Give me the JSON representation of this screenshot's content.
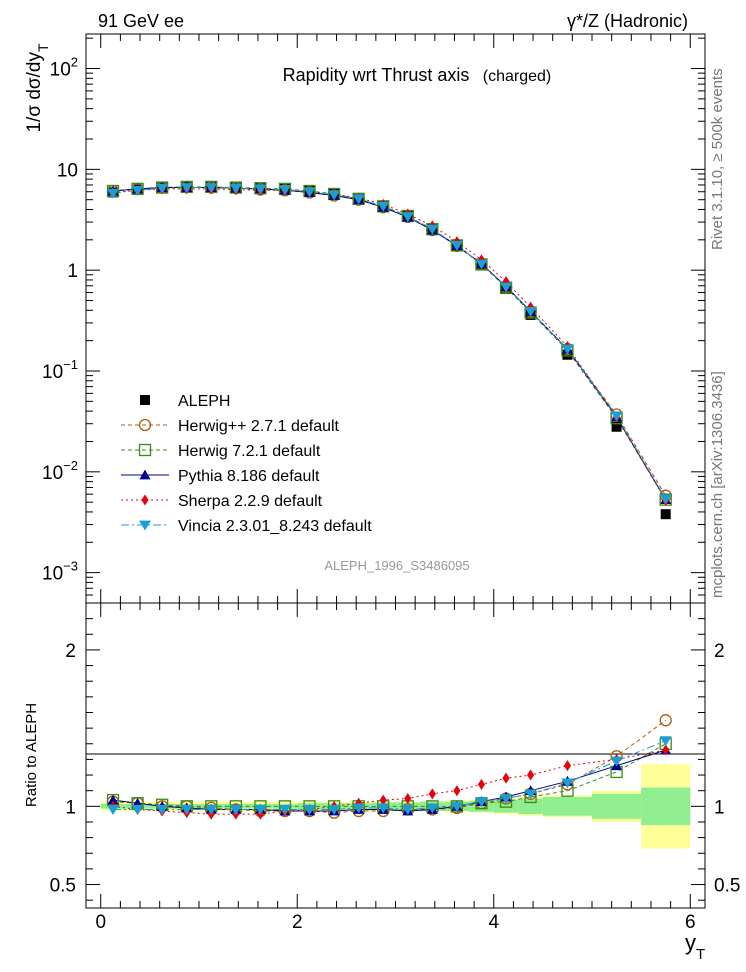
{
  "header": {
    "left": "91 GeV ee",
    "right": "γ*/Z (Hadronic)"
  },
  "side_labels": {
    "rivet": "Rivet 3.1.10, ≥ 500k events",
    "mcplots": "mcplots.cern.ch [arXiv:1306.3436]"
  },
  "chart_data": [
    {
      "type": "line",
      "title": "Rapidity wrt Thrust axis",
      "subtitle": "(charged)",
      "watermark": "ALEPH_1996_S3486095",
      "ylabel": "1/σ dσ/dy_T",
      "xlabel": "y_T",
      "yscale": "log",
      "xlim": [
        -0.15,
        6.15
      ],
      "ylim": [
        0.0005,
        220
      ],
      "ytick_labels": [
        {
          "value": 0.001,
          "base": "10",
          "exp": "−3"
        },
        {
          "value": 0.01,
          "base": "10",
          "exp": "−2"
        },
        {
          "value": 0.1,
          "base": "10",
          "exp": "−1"
        },
        {
          "value": 1,
          "base": "1",
          "exp": ""
        },
        {
          "value": 10,
          "base": "10",
          "exp": ""
        },
        {
          "value": 100,
          "base": "10",
          "exp": "2"
        }
      ],
      "x": [
        0.125,
        0.375,
        0.625,
        0.875,
        1.125,
        1.375,
        1.625,
        1.875,
        2.125,
        2.375,
        2.625,
        2.875,
        3.125,
        3.375,
        3.625,
        3.875,
        4.125,
        4.375,
        4.75,
        5.25,
        5.75
      ],
      "reference": {
        "name": "ALEPH",
        "color": "#000000",
        "values": [
          5.9,
          6.3,
          6.6,
          6.7,
          6.7,
          6.6,
          6.5,
          6.4,
          6.1,
          5.7,
          5.1,
          4.3,
          3.45,
          2.55,
          1.75,
          1.12,
          0.65,
          0.36,
          0.145,
          0.028,
          0.0038
        ]
      },
      "series": [
        {
          "name": "Herwig++ 2.7.1 default",
          "color": "#b25a0b",
          "dash": "4,3",
          "marker": "open-circle",
          "values": [
            6.1,
            6.4,
            6.6,
            6.7,
            6.6,
            6.5,
            6.3,
            6.2,
            5.9,
            5.5,
            5.0,
            4.2,
            3.38,
            2.5,
            1.74,
            1.14,
            0.68,
            0.39,
            0.165,
            0.037,
            0.0058
          ]
        },
        {
          "name": "Herwig 7.2.1 default",
          "color": "#3c8a16",
          "dash": "4,3",
          "marker": "open-square",
          "values": [
            6.1,
            6.4,
            6.6,
            6.7,
            6.7,
            6.6,
            6.5,
            6.4,
            6.1,
            5.7,
            5.1,
            4.3,
            3.45,
            2.55,
            1.76,
            1.14,
            0.67,
            0.38,
            0.16,
            0.034,
            0.0053
          ]
        },
        {
          "name": "Pythia 8.186 default",
          "color": "#00008b",
          "dash": "",
          "marker": "triangle-up",
          "values": [
            6.1,
            6.4,
            6.6,
            6.6,
            6.6,
            6.5,
            6.4,
            6.2,
            5.9,
            5.5,
            5.0,
            4.2,
            3.35,
            2.5,
            1.75,
            1.16,
            0.69,
            0.39,
            0.165,
            0.035,
            0.0053
          ]
        },
        {
          "name": "Sherpa 2.2.9 default",
          "color": "#e8000b",
          "dash": "2,3",
          "marker": "diamond",
          "values": [
            5.9,
            6.2,
            6.4,
            6.4,
            6.4,
            6.3,
            6.2,
            6.2,
            6.0,
            5.7,
            5.2,
            4.5,
            3.6,
            2.75,
            1.92,
            1.27,
            0.77,
            0.43,
            0.175,
            0.035,
            0.0052
          ]
        },
        {
          "name": "Vincia 2.3.01_8.243 default",
          "color": "#1a9ed8",
          "dash": "8,3,2,3",
          "marker": "triangle-down",
          "values": [
            5.8,
            6.2,
            6.5,
            6.6,
            6.6,
            6.5,
            6.4,
            6.3,
            6.0,
            5.6,
            5.1,
            4.3,
            3.4,
            2.55,
            1.76,
            1.15,
            0.68,
            0.39,
            0.165,
            0.036,
            0.0054
          ]
        }
      ]
    },
    {
      "type": "line",
      "title": "Ratio to ALEPH",
      "ylabel": "Ratio to ALEPH",
      "xlabel": "y_T",
      "ylim": [
        0.35,
        2.3
      ],
      "yticks": [
        0.5,
        1,
        2
      ],
      "ytick_labels": [
        "0.5",
        "1",
        "2"
      ],
      "xticks": [
        0,
        2,
        4,
        6
      ],
      "xtick_labels": [
        "0",
        "2",
        "4",
        "6"
      ],
      "bin_edges": [
        0,
        0.25,
        0.5,
        0.75,
        1.0,
        1.25,
        1.5,
        1.75,
        2.0,
        2.25,
        2.5,
        2.75,
        3.0,
        3.25,
        3.5,
        3.75,
        4.0,
        4.25,
        4.5,
        5.0,
        5.5,
        6.0
      ],
      "band_stat": [
        0.015,
        0.015,
        0.015,
        0.015,
        0.015,
        0.015,
        0.015,
        0.015,
        0.02,
        0.02,
        0.02,
        0.025,
        0.025,
        0.03,
        0.03,
        0.035,
        0.04,
        0.05,
        0.06,
        0.08,
        0.12
      ],
      "band_total": [
        0.03,
        0.03,
        0.03,
        0.03,
        0.03,
        0.03,
        0.03,
        0.03,
        0.03,
        0.03,
        0.03,
        0.03,
        0.03,
        0.03,
        0.04,
        0.04,
        0.05,
        0.06,
        0.07,
        0.1,
        0.27
      ],
      "band_colors": {
        "stat": "#90ee90",
        "total": "#ffff99"
      },
      "series": [
        {
          "name": "Herwig++ 2.7.1 default",
          "values": [
            1.03,
            1.02,
            1.0,
            1.0,
            0.99,
            0.98,
            0.97,
            0.97,
            0.97,
            0.96,
            0.97,
            0.97,
            0.98,
            0.98,
            0.99,
            1.02,
            1.05,
            1.08,
            1.14,
            1.32,
            1.55
          ]
        },
        {
          "name": "Herwig 7.2.1 default",
          "values": [
            1.04,
            1.02,
            1.01,
            1.0,
            1.0,
            1.0,
            1.0,
            1.0,
            1.0,
            1.0,
            1.0,
            1.0,
            1.0,
            1.0,
            1.0,
            1.02,
            1.03,
            1.06,
            1.1,
            1.22,
            1.4
          ]
        },
        {
          "name": "Pythia 8.186 default",
          "values": [
            1.04,
            1.02,
            1.0,
            0.99,
            0.98,
            0.98,
            0.98,
            0.97,
            0.97,
            0.97,
            0.98,
            0.98,
            0.97,
            0.98,
            1.0,
            1.03,
            1.06,
            1.1,
            1.16,
            1.26,
            1.36
          ]
        },
        {
          "name": "Sherpa 2.2.9 default",
          "values": [
            1.0,
            0.98,
            0.97,
            0.96,
            0.95,
            0.95,
            0.95,
            0.97,
            0.98,
            1.0,
            1.02,
            1.04,
            1.05,
            1.08,
            1.1,
            1.14,
            1.18,
            1.2,
            1.26,
            1.3,
            1.36
          ]
        },
        {
          "name": "Vincia 2.3.01_8.243 default",
          "values": [
            0.98,
            0.98,
            0.98,
            0.98,
            0.98,
            0.98,
            0.98,
            0.98,
            0.98,
            0.98,
            0.99,
            0.99,
            0.98,
            0.99,
            1.0,
            1.03,
            1.05,
            1.08,
            1.15,
            1.29,
            1.42
          ]
        }
      ]
    }
  ]
}
